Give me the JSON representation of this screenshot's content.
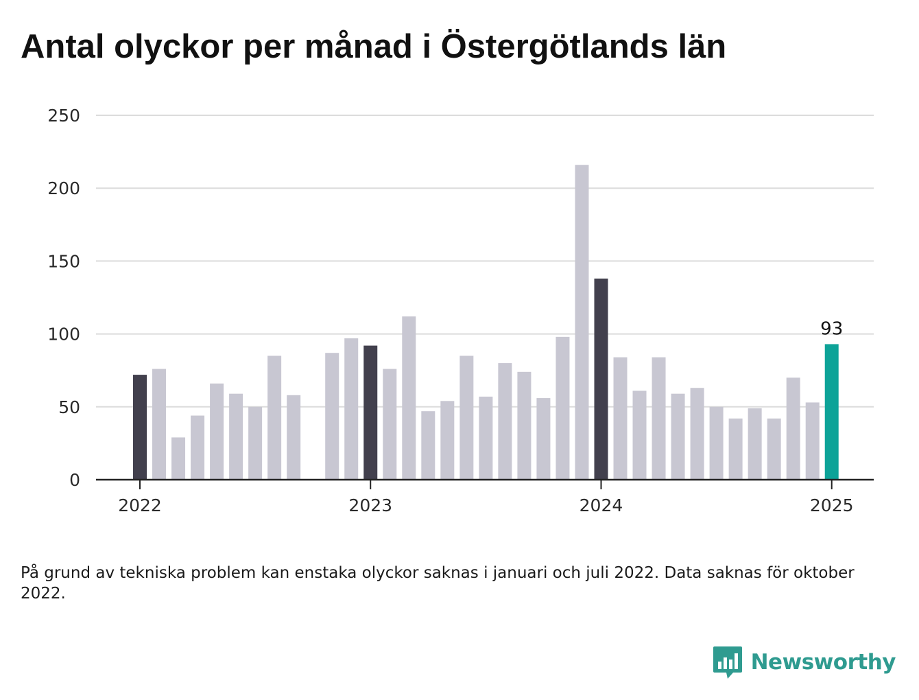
{
  "title": "Antal olyckor per månad i Östergötlands län",
  "note": "På grund av tekniska problem kan enstaka olyckor saknas i januari och juli 2022. Data saknas för oktober 2022.",
  "brand": {
    "name": "Newsworthy",
    "icon": "newsworthy-chart-bubble-icon"
  },
  "colors": {
    "bar_default": "#c8c7d2",
    "bar_january": "#42404d",
    "bar_latest": "#0da398",
    "grid": "#dcdcdc",
    "axis": "#222222",
    "brand": "#2f9b90"
  },
  "chart_data": {
    "type": "bar",
    "title": "Antal olyckor per månad i Östergötlands län",
    "xlabel": "",
    "ylabel": "",
    "ylim": [
      0,
      250
    ],
    "yticks": [
      0,
      50,
      100,
      150,
      200,
      250
    ],
    "xticks": [
      "2022",
      "2023",
      "2024",
      "2025"
    ],
    "grid": true,
    "categories": [
      "2022-01",
      "2022-02",
      "2022-03",
      "2022-04",
      "2022-05",
      "2022-06",
      "2022-07",
      "2022-08",
      "2022-09",
      "2022-10",
      "2022-11",
      "2022-12",
      "2023-01",
      "2023-02",
      "2023-03",
      "2023-04",
      "2023-05",
      "2023-06",
      "2023-07",
      "2023-08",
      "2023-09",
      "2023-10",
      "2023-11",
      "2023-12",
      "2024-01",
      "2024-02",
      "2024-03",
      "2024-04",
      "2024-05",
      "2024-06",
      "2024-07",
      "2024-08",
      "2024-09",
      "2024-10",
      "2024-11",
      "2024-12",
      "2025-01"
    ],
    "values": [
      72,
      76,
      29,
      44,
      66,
      59,
      50,
      85,
      58,
      null,
      87,
      97,
      92,
      76,
      112,
      47,
      54,
      85,
      57,
      80,
      74,
      56,
      98,
      216,
      138,
      84,
      61,
      84,
      59,
      63,
      50,
      42,
      49,
      42,
      70,
      53,
      93
    ],
    "highlight_january": true,
    "latest_label": "93"
  }
}
